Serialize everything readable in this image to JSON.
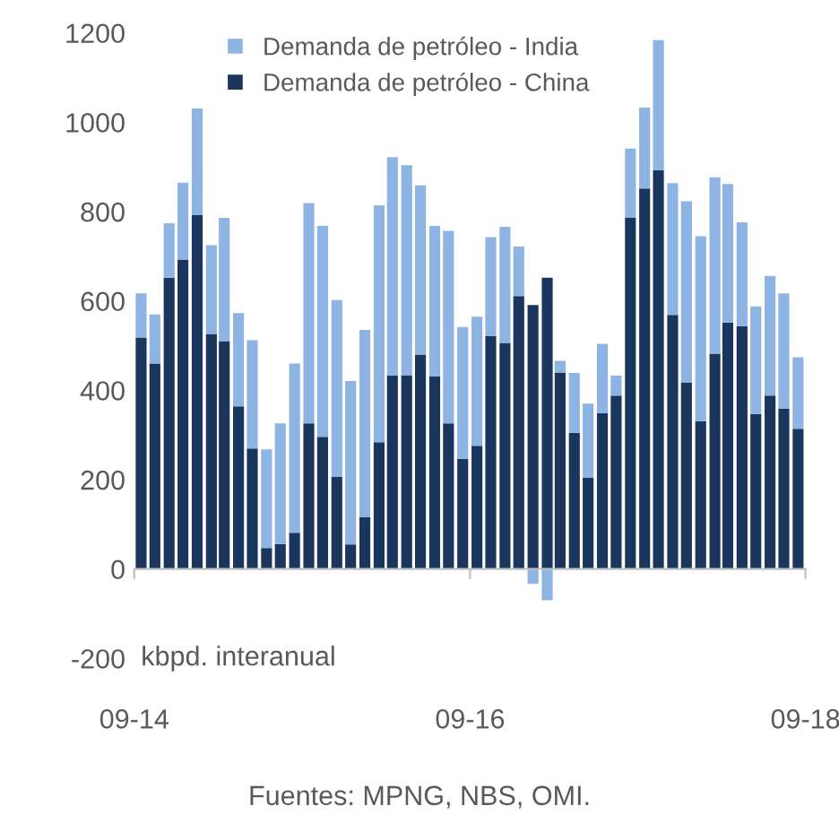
{
  "chart_data": {
    "type": "bar",
    "stacked": true,
    "x": [
      "2014-09-16",
      "2014-10-16",
      "2014-11-16",
      "2014-12-16",
      "2015-01-16",
      "2015-02-16",
      "2015-03-16",
      "2015-04-16",
      "2015-05-16",
      "2015-06-16",
      "2015-07-16",
      "2015-08-16",
      "2015-09-16",
      "2015-10-16",
      "2015-11-16",
      "2015-12-16",
      "2016-01-16",
      "2016-02-16",
      "2016-03-16",
      "2016-04-16",
      "2016-05-16",
      "2016-06-16",
      "2016-07-16",
      "2016-08-16",
      "2016-09-16",
      "2016-10-16",
      "2016-11-16",
      "2016-12-16",
      "2017-01-16",
      "2017-02-16",
      "2017-03-16",
      "2017-04-16",
      "2017-05-16",
      "2017-06-16",
      "2017-07-16",
      "2017-08-16",
      "2017-09-16",
      "2017-10-16",
      "2017-11-16",
      "2017-12-16",
      "2018-01-16",
      "2018-02-16",
      "2018-03-16",
      "2018-04-16",
      "2018-05-16",
      "2018-06-16",
      "2018-07-16",
      "2018-08-16"
    ],
    "series": [
      {
        "name": "Demanda de petróleo - China",
        "color": "#1b365d",
        "values": [
          518,
          460,
          652,
          693,
          792,
          526,
          510,
          364,
          270,
          47,
          56,
          81,
          326,
          296,
          206,
          55,
          116,
          284,
          433,
          434,
          480,
          431,
          326,
          247,
          276,
          521,
          506,
          611,
          591,
          652,
          440,
          305,
          204,
          349,
          388,
          786,
          852,
          893,
          569,
          418,
          331,
          482,
          552,
          544,
          347,
          388,
          359,
          314
        ]
      },
      {
        "name": "Demanda de petróleo - India",
        "color": "#8db4e2",
        "values": [
          99,
          110,
          122,
          172,
          239,
          199,
          276,
          209,
          242,
          221,
          270,
          379,
          493,
          472,
          396,
          366,
          419,
          530,
          489,
          470,
          379,
          337,
          431,
          295,
          289,
          222,
          260,
          111,
          -33,
          -70,
          26,
          134,
          166,
          155,
          45,
          155,
          181,
          291,
          295,
          405,
          414,
          395,
          310,
          232,
          241,
          268,
          258,
          160
        ]
      }
    ],
    "xlim": [
      "2014-09",
      "2018-09"
    ],
    "xticks": [
      {
        "value": "2014-09",
        "label": "09-14"
      },
      {
        "value": "2016-09",
        "label": "09-16"
      },
      {
        "value": "2018-09",
        "label": "09-18"
      }
    ],
    "ylim": [
      -200,
      1200
    ],
    "yticks": [
      -200,
      0,
      200,
      400,
      600,
      800,
      1000,
      1200
    ],
    "ylabel": "kbpd. interanual",
    "legend": "top left",
    "annotations": [
      "Fuentes: MPNG, NBS, OMI."
    ]
  }
}
